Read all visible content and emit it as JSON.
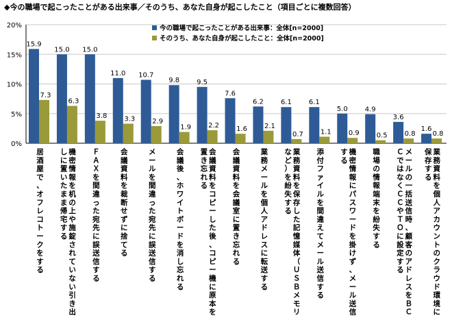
{
  "chart_data": {
    "type": "bar",
    "title": "◆今の職場で起こったことがある出来事／そのうち、あなた自身が起こしたこと（項目ごとに複数回答）",
    "ylim": [
      0,
      20
    ],
    "yticks": [
      "0%",
      "5%",
      "10%",
      "15%",
      "20%"
    ],
    "grid": true,
    "legend_position": "top-right",
    "categories": [
      "居酒屋で、オフレコトークをする",
      "機密情報を机の上や施錠されていない引き出しに置いたまま帰宅する",
      "ＦＡＸを間違った宛先に誤送信する",
      "会議資料を裁断せずに捨てる",
      "メールを間違った宛先に誤送信する",
      "会議後、ホワイトボードを消し忘れる",
      "会議資料をコピーした後、コピー機に原本を置き忘れる",
      "会議資料を会議室に置き忘れる",
      "業務メールを個人アドレスに転送する",
      "業務資料を保存した記憶媒体（ＵＳＢメモリなど）を紛失する",
      "添付ファイルを間違えてメール送信する",
      "機密情報にパスワードを掛けず、メール送信する",
      "職場の情報端末を紛失する",
      "メールの一括送信時、顧客のアドレスをＢＣＣではなくＣＣやＴＯに設定する",
      "業務資料を個人アカウントのクラウド環境に保存する"
    ],
    "series": [
      {
        "name": "今の職場で起こったことがある出来事：全体[n=2000]",
        "color": "#2e5b96",
        "values": [
          15.9,
          15.0,
          15.0,
          11.0,
          10.7,
          9.8,
          9.5,
          7.6,
          6.2,
          6.1,
          6.1,
          5.0,
          4.9,
          3.6,
          1.6
        ],
        "labels": [
          "15.9",
          "15.0",
          "15.0",
          "11.0",
          "10.7",
          "9.8",
          "9.5",
          "7.6",
          "6.2",
          "6.1",
          "6.1",
          "5.0",
          "4.9",
          "3.6",
          "1.6"
        ]
      },
      {
        "name": "そのうち、あなた自身が起こしたこと：全体[n=2000]",
        "color": "#9a9a3a",
        "values": [
          7.3,
          6.3,
          3.8,
          3.3,
          2.9,
          1.9,
          2.2,
          1.6,
          2.1,
          0.7,
          1.1,
          0.9,
          0.5,
          0.8,
          0.8
        ],
        "labels": [
          "7.3",
          "6.3",
          "3.8",
          "3.3",
          "2.9",
          "1.9",
          "2.2",
          "1.6",
          "2.1",
          "0.7",
          "1.1",
          "0.9",
          "0.5",
          "0.8",
          "0.8"
        ]
      }
    ]
  }
}
